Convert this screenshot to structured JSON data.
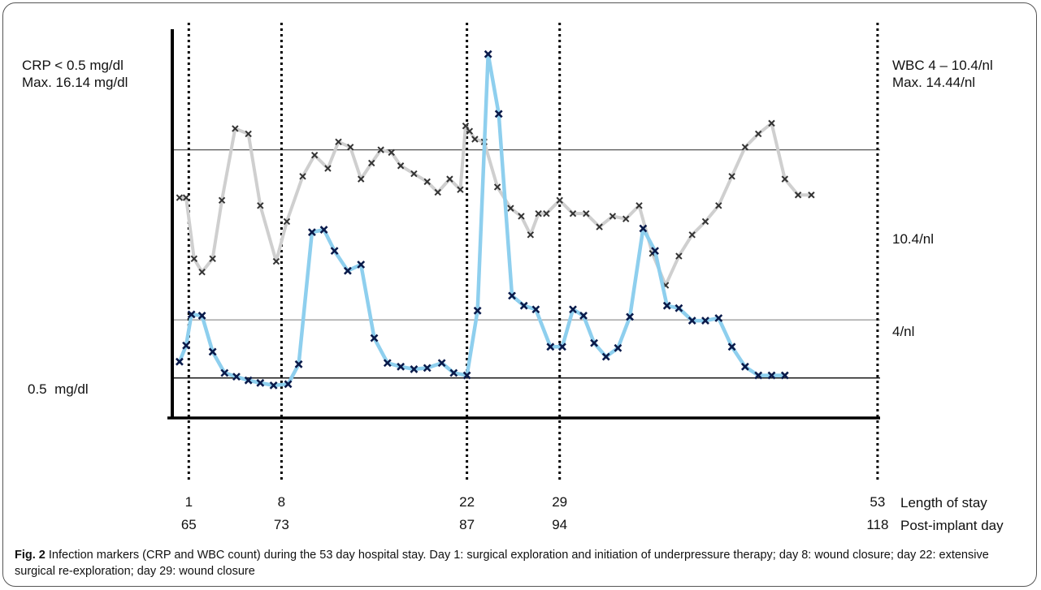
{
  "chart_data": {
    "type": "line",
    "left_axis": {
      "line1": "CRP < 0.5 mg/dl",
      "line2": "Max. 16.14 mg/dl",
      "reference_label": "0.5  mg/dl"
    },
    "right_axis": {
      "line1": "WBC 4 – 10.4/nl",
      "line2": "Max. 14.44/nl",
      "ref_high_label": "10.4/nl",
      "ref_low_label": "4/nl"
    },
    "x_range": [
      0,
      53
    ],
    "wbc_range": [
      0,
      14.44
    ],
    "crp_range": [
      0,
      16.14
    ],
    "markers": [
      {
        "stay": "1",
        "implant": "65",
        "day": 1
      },
      {
        "stay": "8",
        "implant": "73",
        "day": 8
      },
      {
        "stay": "22",
        "implant": "87",
        "day": 22
      },
      {
        "stay": "29",
        "implant": "94",
        "day": 29
      },
      {
        "stay": "53",
        "implant": "118",
        "day": 53
      }
    ],
    "row_labels": {
      "stay": "Length of stay",
      "implant": "Post-implant day"
    },
    "series": [
      {
        "color": "#333333",
        "line_color": "#cfcfcf",
        "x": [
          0.3,
          0.8,
          1.4,
          2.0,
          2.8,
          3.5,
          4.5,
          5.5,
          6.4,
          7.6,
          8.4,
          9.6,
          10.5,
          11.5,
          12.3,
          13.2,
          14.0,
          14.8,
          15.5,
          16.3,
          17.0,
          18.0,
          19.0,
          19.8,
          20.7,
          21.5,
          21.9,
          22.2,
          22.6,
          23.3,
          24.3,
          25.3,
          26.1,
          26.8,
          27.4,
          28.0,
          29.0,
          30.0,
          31.0,
          32.0,
          33.0,
          34.0,
          35.0,
          36.0,
          37.0,
          38.0,
          39.0,
          40.0,
          41.0,
          42.0,
          43.0,
          44.0,
          45.0,
          46.0,
          47.0,
          48.0
        ],
        "y": [
          8.6,
          8.6,
          6.3,
          5.8,
          6.3,
          8.5,
          11.2,
          11.0,
          8.3,
          6.2,
          7.7,
          9.4,
          10.2,
          9.7,
          10.7,
          10.5,
          9.3,
          9.9,
          10.4,
          10.3,
          9.8,
          9.5,
          9.2,
          8.8,
          9.3,
          8.9,
          11.3,
          11.1,
          10.8,
          10.7,
          9.0,
          8.2,
          7.9,
          7.2,
          8.0,
          8.0,
          8.5,
          8.0,
          8.0,
          7.5,
          7.9,
          7.8,
          8.3,
          6.5,
          5.3,
          6.4,
          7.2,
          7.7,
          8.3,
          9.4,
          10.5,
          11.0,
          11.4,
          9.3,
          8.7,
          8.7
        ],
        "unit": "WBC /nl"
      },
      {
        "color": "#0a1a4a",
        "line_color": "#8ecfee",
        "x": [
          0.3,
          0.8,
          1.2,
          2.0,
          2.8,
          3.7,
          4.6,
          5.5,
          6.4,
          7.4,
          8.5,
          9.3,
          10.3,
          11.2,
          12.0,
          13.0,
          14.0,
          15.0,
          16.0,
          17.0,
          18.0,
          19.0,
          20.1,
          21.0,
          22.0,
          22.8,
          23.6,
          24.4,
          25.4,
          26.3,
          27.2,
          28.3,
          29.2,
          30.0,
          30.8,
          31.6,
          32.5,
          33.4,
          34.3,
          35.3,
          36.2,
          37.1,
          38.0,
          39.0,
          40.0,
          41.0,
          42.0,
          43.0,
          44.0,
          45.0,
          46.0
        ],
        "y": [
          1.15,
          1.8,
          3.05,
          3.0,
          1.55,
          0.7,
          0.55,
          0.4,
          0.3,
          0.2,
          0.25,
          1.05,
          6.35,
          6.45,
          5.6,
          4.8,
          5.05,
          2.1,
          1.1,
          0.95,
          0.85,
          0.9,
          1.1,
          0.7,
          0.6,
          3.2,
          13.5,
          11.1,
          3.8,
          3.4,
          3.25,
          1.75,
          1.75,
          3.25,
          3.0,
          1.9,
          1.35,
          1.7,
          2.95,
          6.5,
          5.6,
          3.4,
          3.3,
          2.8,
          2.8,
          2.9,
          1.75,
          0.95,
          0.6,
          0.6,
          0.6
        ],
        "unit": "CRP mg/dl"
      }
    ]
  },
  "caption": {
    "label": "Fig. 2",
    "text": " Infection markers (CRP and WBC count) during the 53 day hospital stay. Day 1: surgical exploration and initiation of underpressure therapy; day 8: wound closure; day 22: extensive surgical re-exploration; day 29: wound closure"
  }
}
